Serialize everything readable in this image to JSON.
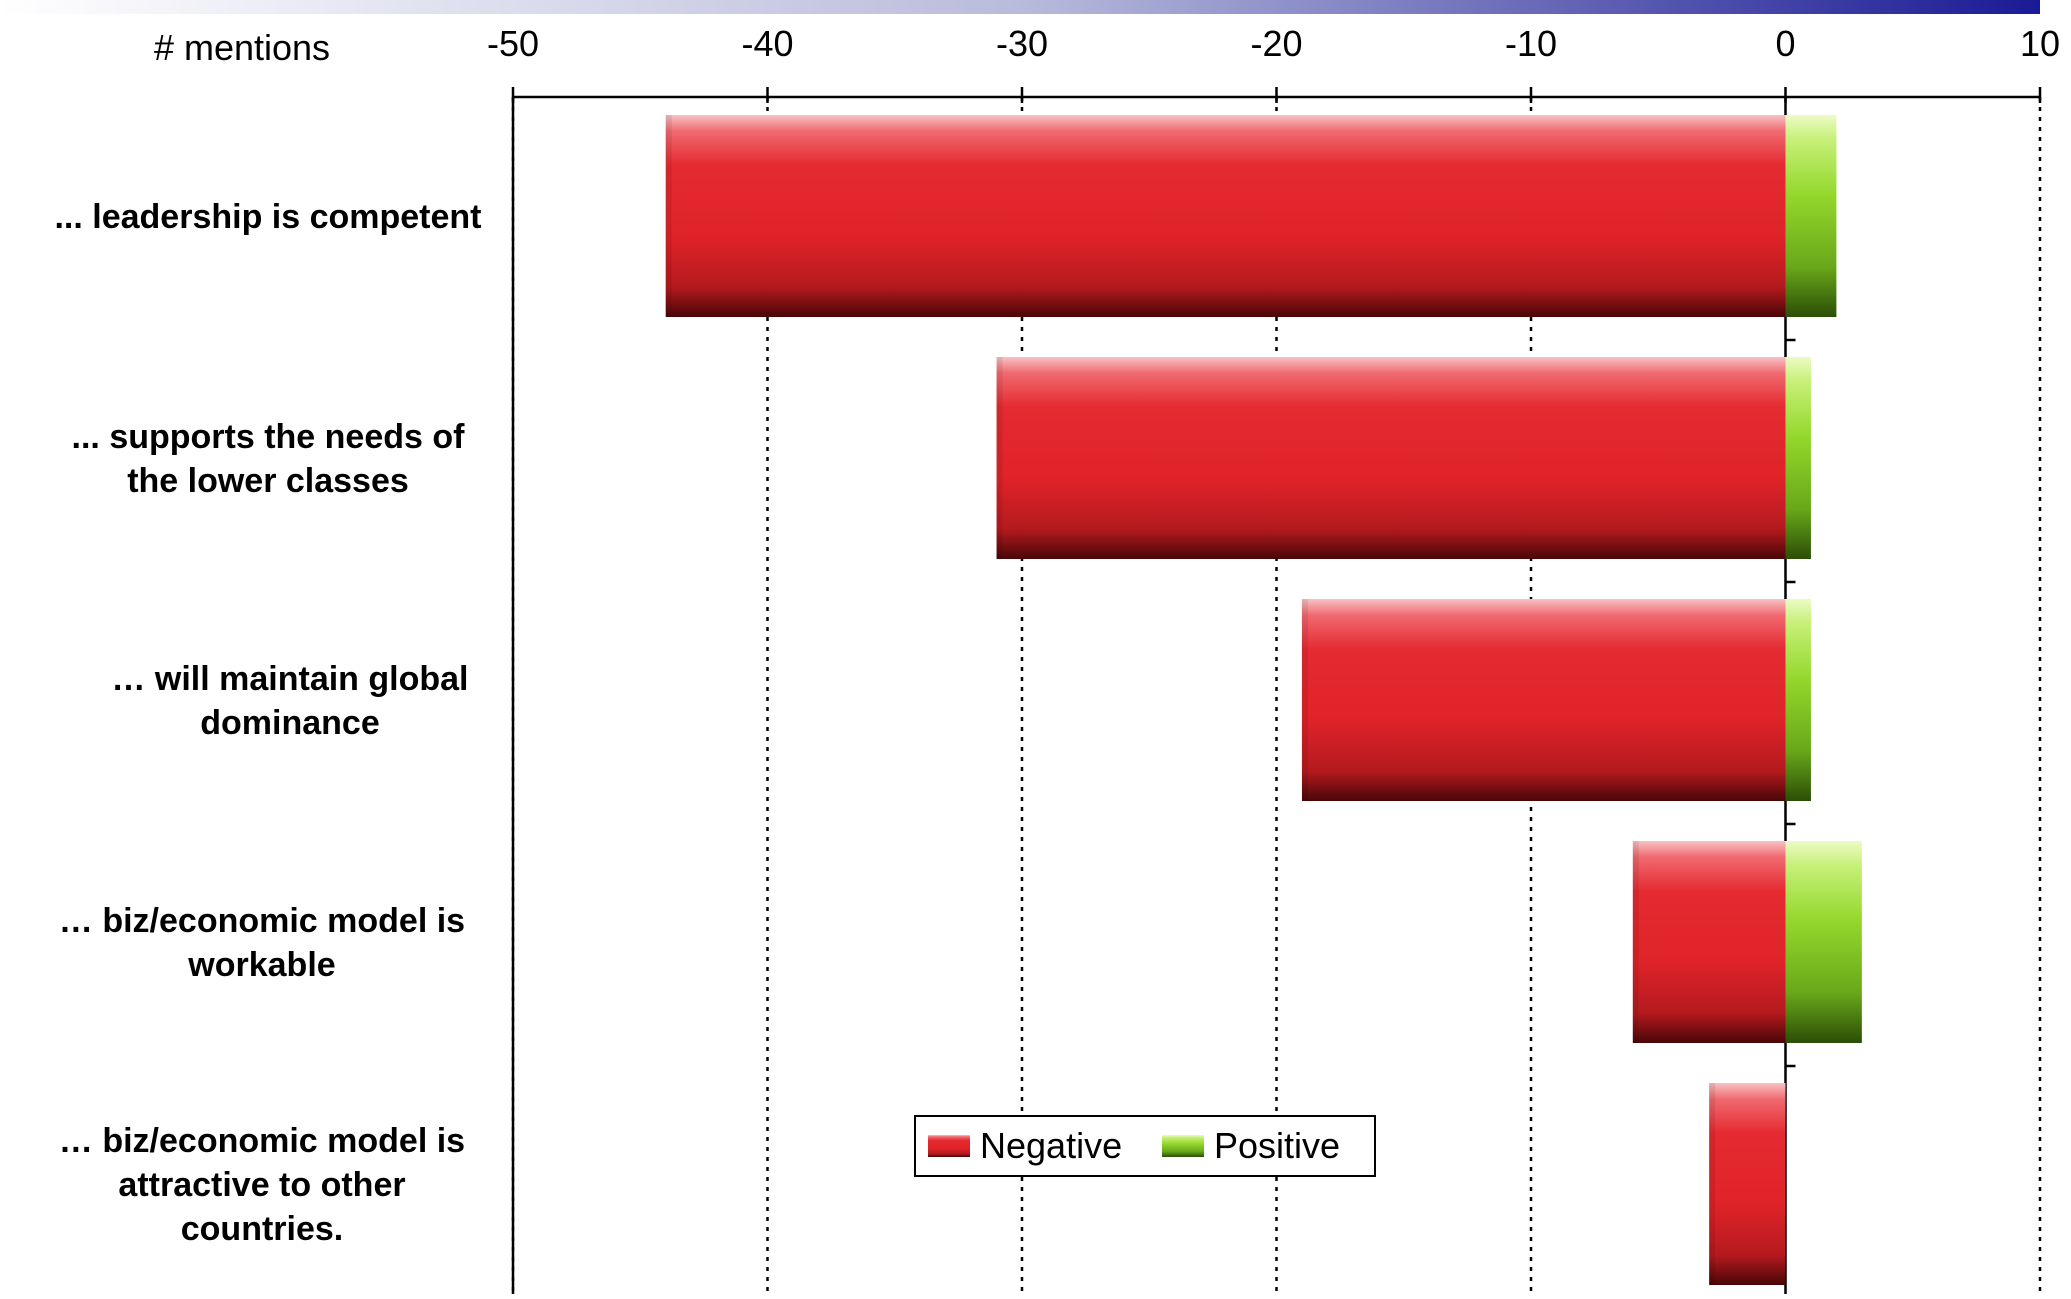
{
  "chart_data": {
    "type": "bar",
    "orientation": "horizontal",
    "stacking": "diverging",
    "xlabel": "# mentions",
    "xlim": [
      -50,
      10
    ],
    "xticks": [
      -50,
      -40,
      -30,
      -20,
      -10,
      0,
      10
    ],
    "xtick_labels": [
      "-50",
      "-40",
      "-30",
      "-20",
      "-10",
      "0",
      "10"
    ],
    "grid": "vertical dotted",
    "categories": [
      [
        "... leadership is competent"
      ],
      [
        "... supports the needs of",
        "the lower classes"
      ],
      [
        "… will maintain global",
        "dominance"
      ],
      [
        "… biz/economic model is",
        "workable"
      ],
      [
        "… biz/economic model is",
        "attractive to other",
        "countries."
      ]
    ],
    "series": [
      {
        "name": "Negative",
        "color": "#e0232a",
        "values": [
          -44,
          -31,
          -19,
          -6,
          -3
        ]
      },
      {
        "name": "Positive",
        "color": "#7cc21e",
        "values": [
          2,
          1,
          1,
          3,
          0
        ]
      }
    ],
    "legend": {
      "position": "bottom-center",
      "entries": [
        "Negative",
        "Positive"
      ]
    }
  }
}
